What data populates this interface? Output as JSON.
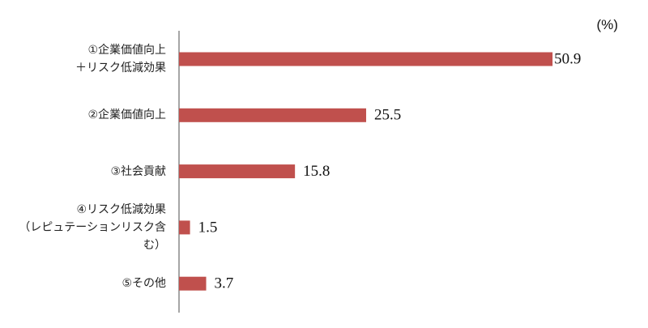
{
  "chart_data": {
    "type": "bar",
    "orientation": "horizontal",
    "unit_label": "(%)",
    "categories": [
      "①企業価値向上\n＋リスク低減効果",
      "②企業価値向上",
      "③社会貢献",
      "④リスク低減効果\n（レピュテーションリスク含む）",
      "⑤その他"
    ],
    "values": [
      50.9,
      25.5,
      15.8,
      1.5,
      3.7
    ],
    "color": "#c0504d"
  }
}
